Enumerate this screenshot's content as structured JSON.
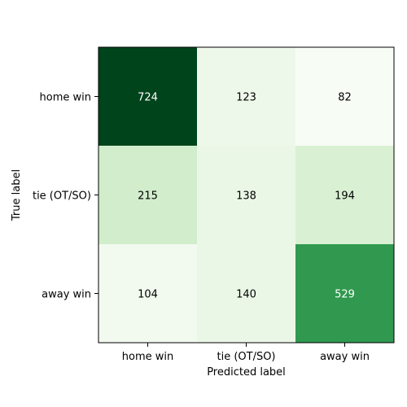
{
  "chart_data": {
    "type": "heatmap",
    "title": "",
    "xlabel": "Predicted label",
    "ylabel": "True label",
    "x_categories": [
      "home win",
      "tie (OT/SO)",
      "away win"
    ],
    "y_categories": [
      "home win",
      "tie (OT/SO)",
      "away win"
    ],
    "values": [
      [
        724,
        123,
        82
      ],
      [
        215,
        138,
        194
      ],
      [
        104,
        140,
        529
      ]
    ],
    "colormap": "Greens",
    "colors": {
      "low": "#f7fcf5",
      "high": "#00441b",
      "text_dark": "#000000",
      "text_light": "#ffffff"
    },
    "grid": false
  }
}
